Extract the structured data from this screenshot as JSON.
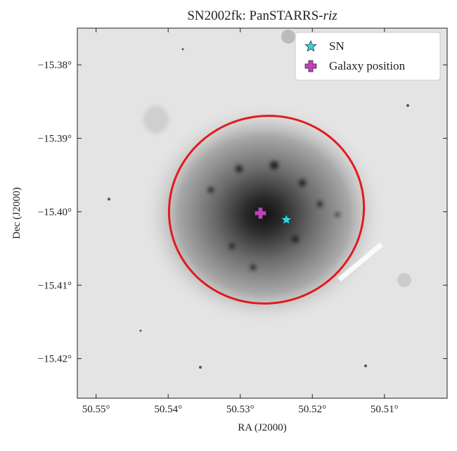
{
  "chart_data": {
    "type": "scatter",
    "title": "SN2002fk: PanSTARRS-",
    "title_filter": "riz",
    "x_label": "RA (J2000)",
    "y_label": "Dec (J2000)",
    "xlim": [
      50.5526,
      50.5013
    ],
    "ylim": [
      -15.4254,
      -15.375
    ],
    "xticks": [
      {
        "value": 50.55,
        "label": "50.55°"
      },
      {
        "value": 50.54,
        "label": "50.54°"
      },
      {
        "value": 50.53,
        "label": "50.53°"
      },
      {
        "value": 50.52,
        "label": "50.52°"
      },
      {
        "value": 50.51,
        "label": "50.51°"
      }
    ],
    "yticks": [
      {
        "value": -15.38,
        "label": "−15.38°"
      },
      {
        "value": -15.39,
        "label": "−15.39°"
      },
      {
        "value": -15.4,
        "label": "−15.40°"
      },
      {
        "value": -15.41,
        "label": "−15.41°"
      },
      {
        "value": -15.42,
        "label": "−15.42°"
      }
    ],
    "legend": "upper right",
    "series": [
      {
        "name": "SN",
        "color": "#2fd6e6",
        "marker": "star",
        "x": [
          50.5236
        ],
        "values": [
          -15.4011
        ]
      },
      {
        "name": "Galaxy position",
        "color": "#c23fc2",
        "marker": "plus",
        "x": [
          50.5272
        ],
        "values": [
          -15.4002
        ]
      }
    ]
  }
}
